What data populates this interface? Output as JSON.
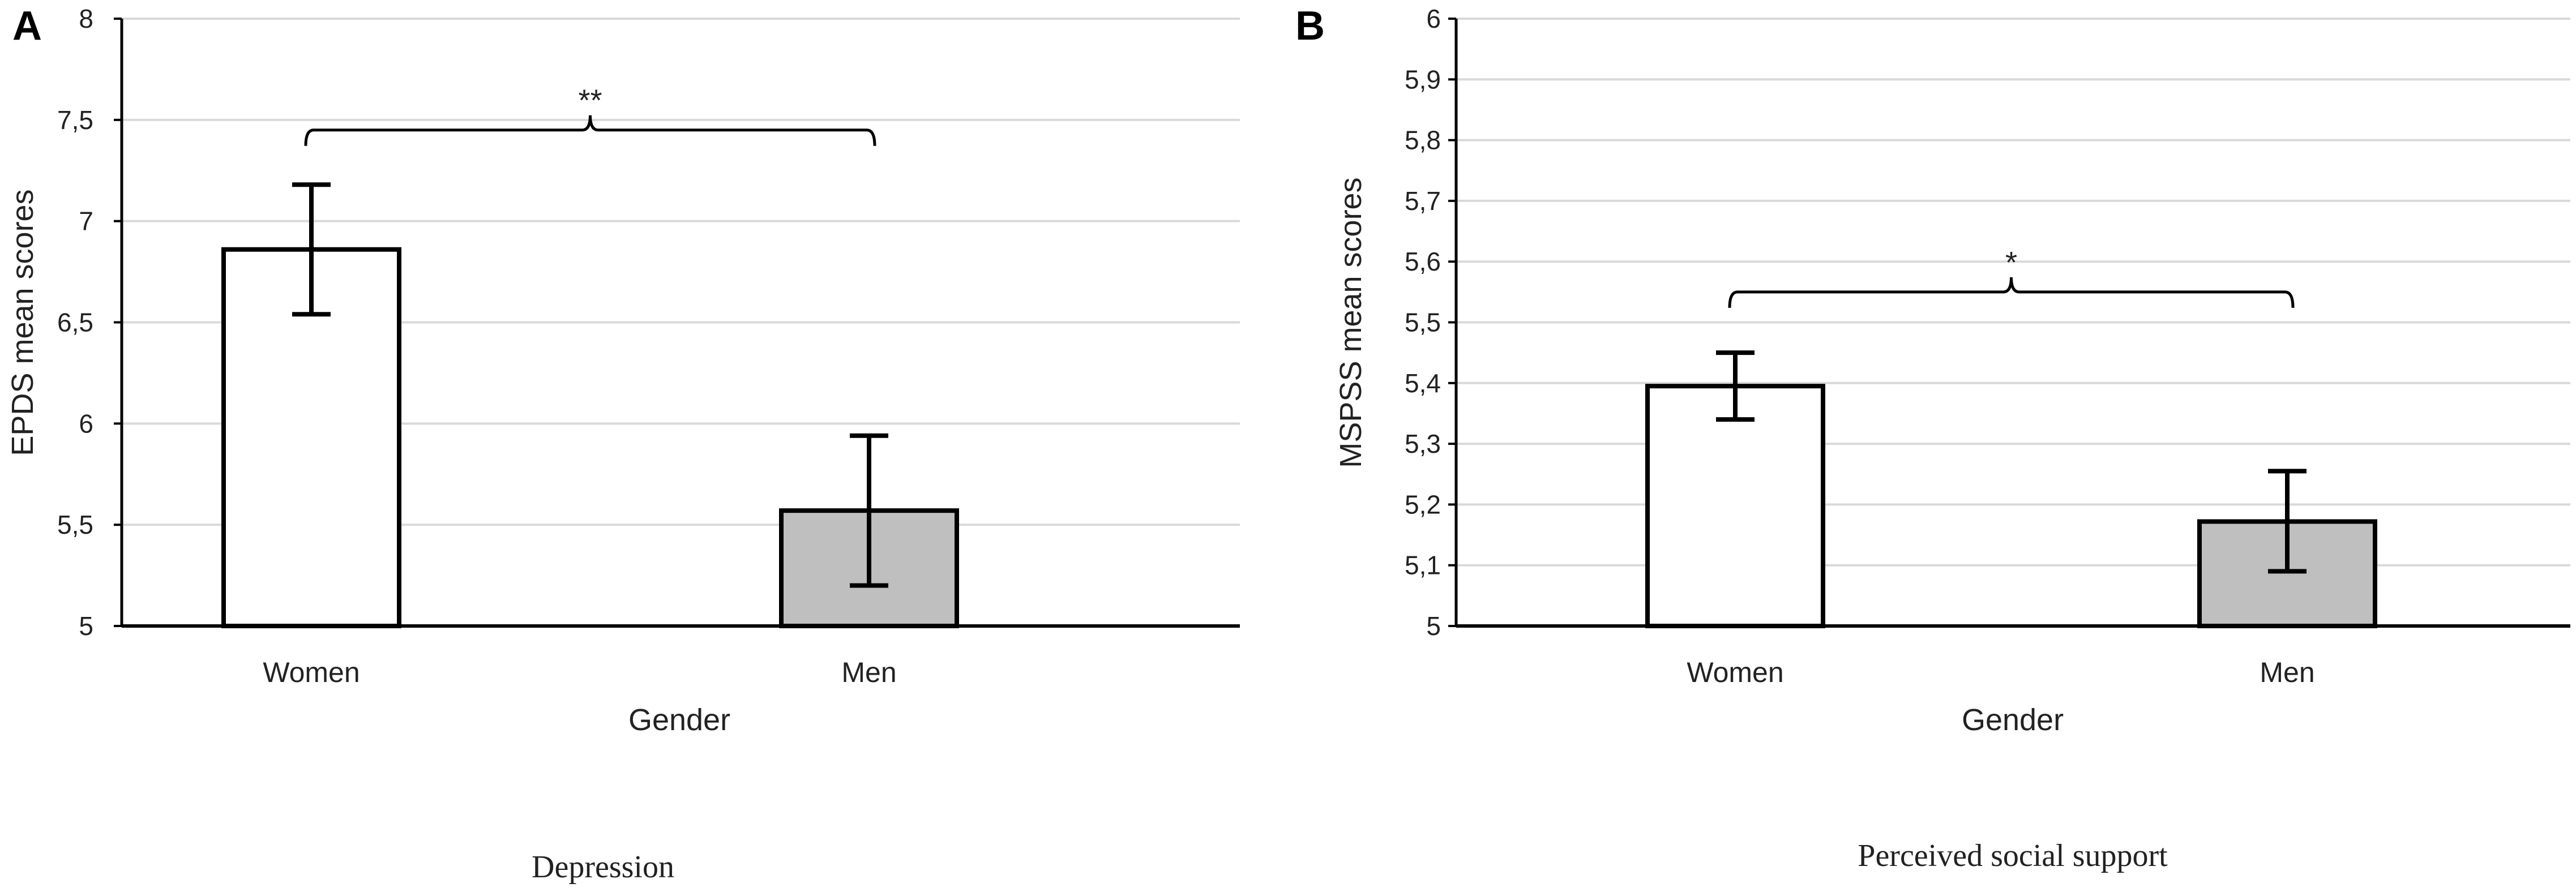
{
  "chart_data": [
    {
      "type": "bar",
      "panel": "A",
      "title": "Depression",
      "xlabel": "Gender",
      "ylabel": "EPDS mean scores",
      "categories": [
        "Women",
        "Men"
      ],
      "values": [
        6.86,
        5.57
      ],
      "error_low": [
        6.54,
        5.2
      ],
      "error_high": [
        7.18,
        5.94
      ],
      "bar_colors": [
        "#ffffff",
        "#bfbfbf"
      ],
      "ylim": [
        5,
        8
      ],
      "yticks": [
        5,
        5.5,
        6,
        6.5,
        7,
        7.5,
        8
      ],
      "ytick_labels": [
        "5",
        "5,5",
        "6",
        "6,5",
        "7",
        "7,5",
        "8"
      ],
      "grid": true,
      "significance": {
        "label": "**",
        "between": [
          "Women",
          "Men"
        ],
        "y": 7.45
      }
    },
    {
      "type": "bar",
      "panel": "B",
      "title": "Perceived social support",
      "xlabel": "Gender",
      "ylabel": "MSPSS mean scores",
      "categories": [
        "Women",
        "Men"
      ],
      "values": [
        5.395,
        5.172
      ],
      "error_low": [
        5.34,
        5.09
      ],
      "error_high": [
        5.45,
        5.255
      ],
      "bar_colors": [
        "#ffffff",
        "#bfbfbf"
      ],
      "ylim": [
        5,
        6
      ],
      "yticks": [
        5,
        5.1,
        5.2,
        5.3,
        5.4,
        5.5,
        5.6,
        5.7,
        5.8,
        5.9,
        6
      ],
      "ytick_labels": [
        "5",
        "5,1",
        "5,2",
        "5,3",
        "5,4",
        "5,5",
        "5,6",
        "5,7",
        "5,8",
        "5,9",
        "6"
      ],
      "grid": true,
      "significance": {
        "label": "*",
        "between": [
          "Women",
          "Men"
        ],
        "y": 5.55
      }
    }
  ],
  "colors": {
    "grid": "#d9d9d9",
    "axis": "#000000",
    "bar_edge": "#000000"
  }
}
